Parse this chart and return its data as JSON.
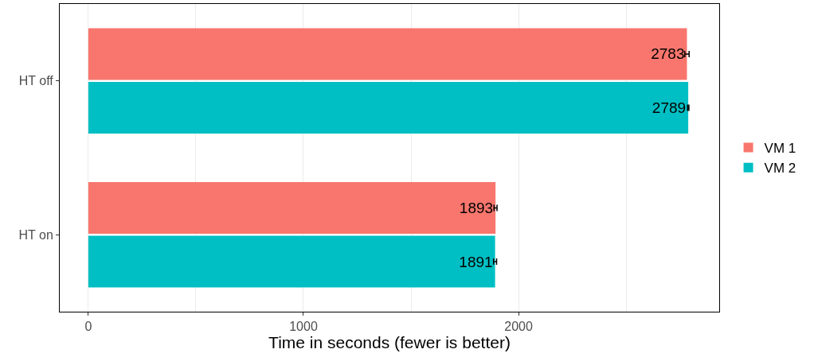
{
  "chart_data": {
    "type": "bar",
    "orientation": "horizontal",
    "xlabel": "Time in seconds (fewer is better)",
    "categories": [
      "HT off",
      "HT on"
    ],
    "series": [
      {
        "name": "VM 1",
        "color": "#f8766d",
        "values": [
          2783,
          1893
        ],
        "errors": [
          10,
          7
        ]
      },
      {
        "name": "VM 2",
        "color": "#00bfc4",
        "values": [
          2789,
          1891
        ],
        "errors": [
          3,
          7
        ]
      }
    ],
    "data_labels": true,
    "xlim": [
      -133,
      2933
    ],
    "xticks": [
      0,
      {
        "value": 500,
        "label": null
      },
      1000,
      {
        "value": 1500,
        "label": null
      },
      2000,
      {
        "value": 2500,
        "label": null
      }
    ],
    "grid": "x",
    "legend": "right"
  }
}
